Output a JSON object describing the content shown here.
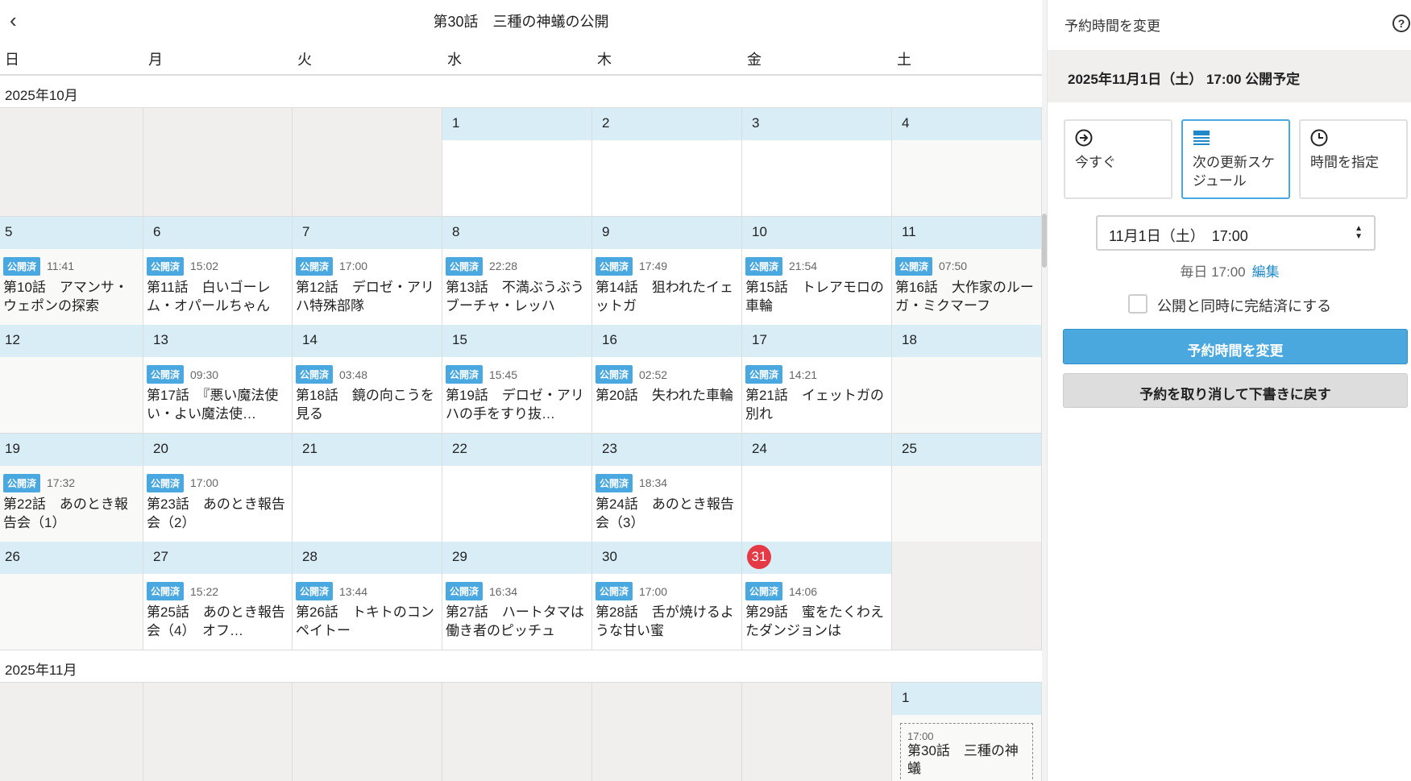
{
  "header": {
    "title": "第30話　三種の神蟻の公開",
    "back_icon": "chevron-left-icon"
  },
  "weekdays": [
    "日",
    "月",
    "火",
    "水",
    "木",
    "金",
    "土"
  ],
  "badge_label": "公開済",
  "months": [
    {
      "label": "2025年10月",
      "weeks": [
        [
          {
            "out": true
          },
          {
            "out": true
          },
          {
            "out": true
          },
          {
            "day": "1"
          },
          {
            "day": "2"
          },
          {
            "day": "3"
          },
          {
            "day": "4"
          }
        ],
        [
          {
            "day": "5",
            "time": "11:41",
            "title": "第10話　アマンサ・ウェポンの探索"
          },
          {
            "day": "6",
            "time": "15:02",
            "title": "第11話　白いゴーレム・オパールちゃん"
          },
          {
            "day": "7",
            "time": "17:00",
            "title": "第12話　デロゼ・アリハ特殊部隊"
          },
          {
            "day": "8",
            "time": "22:28",
            "title": "第13話　不満ぶうぶうブーチャ・レッハ"
          },
          {
            "day": "9",
            "time": "17:49",
            "title": "第14話　狙われたイェットガ"
          },
          {
            "day": "10",
            "time": "21:54",
            "title": "第15話　トレアモロの車輪"
          },
          {
            "day": "11",
            "time": "07:50",
            "title": "第16話　大作家のルーガ・ミクマーフ"
          }
        ],
        [
          {
            "day": "12"
          },
          {
            "day": "13",
            "time": "09:30",
            "title": "第17話　『悪い魔法使い・よい魔法使…"
          },
          {
            "day": "14",
            "time": "03:48",
            "title": "第18話　鏡の向こうを見る"
          },
          {
            "day": "15",
            "time": "15:45",
            "title": "第19話　デロゼ・アリハの手をすり抜…"
          },
          {
            "day": "16",
            "time": "02:52",
            "title": "第20話　失われた車輪"
          },
          {
            "day": "17",
            "time": "14:21",
            "title": "第21話　イェットガの別れ"
          },
          {
            "day": "18"
          }
        ],
        [
          {
            "day": "19",
            "time": "17:32",
            "title": "第22話　あのとき報告会（1）"
          },
          {
            "day": "20",
            "time": "17:00",
            "title": "第23話　あのとき報告会（2）"
          },
          {
            "day": "21"
          },
          {
            "day": "22"
          },
          {
            "day": "23",
            "time": "18:34",
            "title": "第24話　あのとき報告会（3）"
          },
          {
            "day": "24"
          },
          {
            "day": "25"
          }
        ],
        [
          {
            "day": "26"
          },
          {
            "day": "27",
            "time": "15:22",
            "title": "第25話　あのとき報告会（4）　オフ…"
          },
          {
            "day": "28",
            "time": "13:44",
            "title": "第26話　トキトのコンペイトー"
          },
          {
            "day": "29",
            "time": "16:34",
            "title": "第27話　ハートタマは働き者のピッチュ"
          },
          {
            "day": "30",
            "time": "17:00",
            "title": "第28話　舌が焼けるような甘い蜜"
          },
          {
            "day": "31",
            "today": true,
            "time": "14:06",
            "title": "第29話　蜜をたくわえたダンジョンは"
          },
          {
            "out": true
          }
        ]
      ]
    },
    {
      "label": "2025年11月",
      "weeks": [
        [
          {
            "out": true
          },
          {
            "out": true
          },
          {
            "out": true
          },
          {
            "out": true
          },
          {
            "out": true
          },
          {
            "out": true
          },
          {
            "day": "1",
            "scheduled": true,
            "time": "17:00",
            "title": "第30話　三種の神蟻"
          }
        ]
      ]
    }
  ],
  "sidebar": {
    "title": "予約時間を変更",
    "help_icon": "question-circle-icon",
    "scheduled_summary": "2025年11月1日（土） 17:00 公開予定",
    "options": [
      {
        "label": "今すぐ",
        "icon": "arrow-circle-right-icon",
        "selected": false
      },
      {
        "label": "次の更新スケジュール",
        "icon": "schedule-list-icon",
        "selected": true
      },
      {
        "label": "時間を指定",
        "icon": "clock-icon",
        "selected": false
      }
    ],
    "select_value": "11月1日（土）　17:00",
    "daily_text": "毎日 17:00",
    "edit_link": "編集",
    "complete_checkbox_label": "公開と同時に完結済にする",
    "complete_checked": false,
    "primary_button": "予約時間を変更",
    "secondary_button": "予約を取り消して下書きに戻す"
  },
  "colors": {
    "accent": "#4aa8de",
    "day_band": "#d9edf7",
    "today": "#e53945",
    "out_of_month": "#f0efee"
  }
}
